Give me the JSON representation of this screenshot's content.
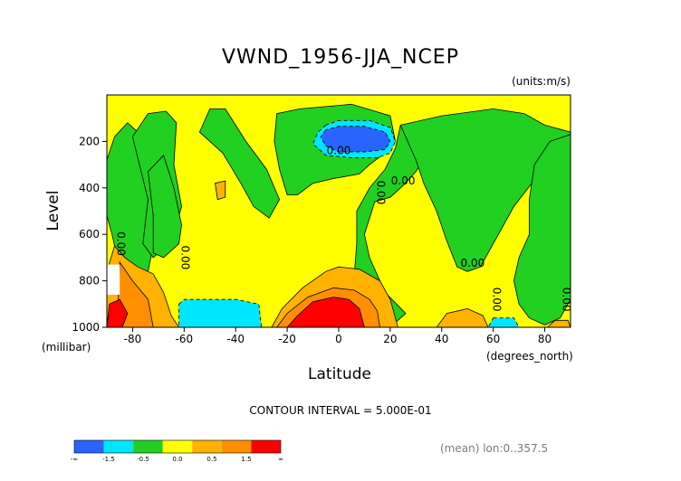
{
  "chart_data": {
    "type": "heatmap",
    "title": "VWND_1956-JJA_NCEP",
    "units_label": "(units:m/s)",
    "xlabel": "Latitude",
    "x_units_label": "(degrees_north)",
    "ylabel": "Level",
    "y_units_label": "(millibar)",
    "xlim": [
      -90,
      90
    ],
    "ylim": [
      1000,
      0
    ],
    "x_ticks": [
      -80,
      -60,
      -40,
      -20,
      0,
      20,
      40,
      60,
      80
    ],
    "y_ticks": [
      200,
      400,
      600,
      800,
      1000
    ],
    "contour_interval_text": "CONTOUR INTERVAL = 5.000E-01",
    "contour_labels": [
      {
        "text": "0.00",
        "lat": 0,
        "level": 255,
        "rotate": 0
      },
      {
        "text": "0.00",
        "lat": 25,
        "level": 385,
        "rotate": 0
      },
      {
        "text": "0.00",
        "lat": 15,
        "level": 420,
        "rotate": 90
      },
      {
        "text": "0.00",
        "lat": 52,
        "level": 740,
        "rotate": 0
      },
      {
        "text": "0.00",
        "lat": -61,
        "level": 700,
        "rotate": 90
      },
      {
        "text": "0.00",
        "lat": -86,
        "level": 640,
        "rotate": 90
      },
      {
        "text": "0.00",
        "lat": 60,
        "level": 880,
        "rotate": 90
      },
      {
        "text": "0.00",
        "lat": 87,
        "level": 880,
        "rotate": 90
      }
    ],
    "colorbar": {
      "labels": [
        "-∞",
        "-1.5",
        "-0.5",
        "0.0",
        "0.5",
        "1.5",
        "∞"
      ],
      "colors": [
        "#2a64ff",
        "#00e6ff",
        "#21d021",
        "#ffff00",
        "#ffb300",
        "#ff8f00",
        "#ff0000"
      ]
    },
    "fields": [
      {
        "level": "positive",
        "color": "#ffff00",
        "outline": [
          [
            -90,
            0
          ],
          [
            90,
            0
          ],
          [
            90,
            1000
          ],
          [
            -90,
            1000
          ]
        ]
      },
      {
        "level": "negative",
        "color": "#21d021",
        "outline": [
          [
            -90,
            280
          ],
          [
            -87,
            180
          ],
          [
            -82,
            120
          ],
          [
            -78,
            160
          ],
          [
            -76,
            330
          ],
          [
            -72,
            400
          ],
          [
            -72,
            650
          ],
          [
            -74,
            760
          ],
          [
            -80,
            780
          ],
          [
            -86,
            700
          ],
          [
            -88,
            600
          ],
          [
            -90,
            520
          ]
        ]
      },
      {
        "level": "negative",
        "color": "#21d021",
        "outline": [
          [
            -80,
            180
          ],
          [
            -74,
            80
          ],
          [
            -67,
            70
          ],
          [
            -63,
            120
          ],
          [
            -64,
            300
          ],
          [
            -61,
            480
          ],
          [
            -64,
            600
          ],
          [
            -68,
            660
          ],
          [
            -72,
            700
          ],
          [
            -76,
            640
          ],
          [
            -74,
            450
          ]
        ]
      },
      {
        "level": "negative",
        "color": "#21d021",
        "outline": [
          [
            -54,
            160
          ],
          [
            -50,
            60
          ],
          [
            -44,
            60
          ],
          [
            -36,
            200
          ],
          [
            -28,
            320
          ],
          [
            -23,
            450
          ],
          [
            -27,
            530
          ],
          [
            -33,
            480
          ],
          [
            -38,
            380
          ],
          [
            -45,
            250
          ]
        ]
      },
      {
        "level": "negative",
        "color": "#21d021",
        "outline": [
          [
            -24,
            80
          ],
          [
            -15,
            60
          ],
          [
            5,
            40
          ],
          [
            20,
            90
          ],
          [
            22,
            200
          ],
          [
            18,
            250
          ],
          [
            12,
            300
          ],
          [
            8,
            340
          ],
          [
            -2,
            360
          ],
          [
            -10,
            380
          ],
          [
            -16,
            430
          ],
          [
            -20,
            430
          ],
          [
            -23,
            320
          ],
          [
            -25,
            200
          ]
        ]
      },
      {
        "level": "negative",
        "color": "#21d021",
        "outline": [
          [
            24,
            130
          ],
          [
            30,
            120
          ],
          [
            35,
            150
          ],
          [
            36,
            220
          ],
          [
            30,
            330
          ],
          [
            25,
            390
          ],
          [
            20,
            440
          ],
          [
            14,
            460
          ],
          [
            10,
            600
          ],
          [
            12,
            700
          ],
          [
            18,
            850
          ],
          [
            26,
            940
          ],
          [
            20,
            1000
          ],
          [
            8,
            1000
          ],
          [
            10,
            900
          ],
          [
            6,
            780
          ],
          [
            7,
            640
          ],
          [
            7,
            500
          ],
          [
            12,
            400
          ],
          [
            18,
            320
          ],
          [
            22,
            230
          ]
        ]
      },
      {
        "level": "negative",
        "color": "#21d021",
        "outline": [
          [
            24,
            130
          ],
          [
            40,
            90
          ],
          [
            60,
            60
          ],
          [
            72,
            80
          ],
          [
            80,
            130
          ],
          [
            90,
            160
          ],
          [
            90,
            360
          ],
          [
            82,
            350
          ],
          [
            75,
            380
          ],
          [
            68,
            480
          ],
          [
            62,
            600
          ],
          [
            55,
            740
          ],
          [
            50,
            760
          ],
          [
            46,
            740
          ],
          [
            42,
            630
          ],
          [
            38,
            500
          ],
          [
            33,
            380
          ],
          [
            30,
            280
          ]
        ]
      },
      {
        "level": "negative",
        "color": "#21d021",
        "outline": [
          [
            76,
            300
          ],
          [
            82,
            200
          ],
          [
            90,
            170
          ],
          [
            90,
            880
          ],
          [
            86,
            960
          ],
          [
            80,
            990
          ],
          [
            74,
            960
          ],
          [
            70,
            900
          ],
          [
            68,
            800
          ],
          [
            70,
            700
          ],
          [
            74,
            600
          ],
          [
            74,
            450
          ]
        ]
      },
      {
        "level": "negative",
        "color": "#21d021",
        "outline": [
          [
            -74,
            330
          ],
          [
            -68,
            260
          ],
          [
            -64,
            400
          ],
          [
            -61,
            560
          ],
          [
            -62,
            640
          ],
          [
            -68,
            700
          ],
          [
            -72,
            680
          ],
          [
            -72,
            520
          ]
        ]
      },
      {
        "level": "negative",
        "color": "#00e6ff",
        "outline": [
          [
            -5,
            130
          ],
          [
            -8,
            160
          ],
          [
            -10,
            210
          ],
          [
            -5,
            260
          ],
          [
            5,
            270
          ],
          [
            15,
            270
          ],
          [
            20,
            250
          ],
          [
            22,
            200
          ],
          [
            20,
            140
          ],
          [
            12,
            110
          ],
          [
            0,
            110
          ]
        ]
      },
      {
        "level": "negative",
        "color": "#2a64ff",
        "outline": [
          [
            -5,
            150
          ],
          [
            -7,
            180
          ],
          [
            -5,
            220
          ],
          [
            0,
            245
          ],
          [
            10,
            245
          ],
          [
            18,
            235
          ],
          [
            20,
            200
          ],
          [
            18,
            160
          ],
          [
            10,
            135
          ],
          [
            0,
            135
          ]
        ]
      },
      {
        "level": "negative",
        "color": "#00e6ff",
        "outline": [
          [
            -62,
            900
          ],
          [
            -60,
            880
          ],
          [
            -40,
            880
          ],
          [
            -31,
            900
          ],
          [
            -30,
            1000
          ],
          [
            -62,
            1000
          ]
        ]
      },
      {
        "level": "negative",
        "color": "#00e6ff",
        "outline": [
          [
            60,
            960
          ],
          [
            68,
            960
          ],
          [
            70,
            1000
          ],
          [
            58,
            1000
          ]
        ]
      },
      {
        "level": "positive",
        "color": "#ffb300",
        "outline": [
          [
            -87,
            650
          ],
          [
            -83,
            700
          ],
          [
            -78,
            740
          ],
          [
            -72,
            770
          ],
          [
            -68,
            850
          ],
          [
            -65,
            950
          ],
          [
            -62,
            1000
          ],
          [
            -90,
            1000
          ],
          [
            -90,
            760
          ]
        ]
      },
      {
        "level": "positive",
        "color": "#ff8f00",
        "outline": [
          [
            -85,
            720
          ],
          [
            -80,
            800
          ],
          [
            -74,
            880
          ],
          [
            -72,
            1000
          ],
          [
            -86,
            1000
          ]
        ]
      },
      {
        "level": "positive",
        "color": "#ff0000",
        "outline": [
          [
            -89,
            900
          ],
          [
            -85,
            880
          ],
          [
            -82,
            940
          ],
          [
            -84,
            1000
          ],
          [
            -90,
            1000
          ]
        ]
      },
      {
        "level": "positive",
        "color": "#ffb300",
        "outline": [
          [
            -26,
            1000
          ],
          [
            -22,
            920
          ],
          [
            -14,
            830
          ],
          [
            -5,
            760
          ],
          [
            0,
            740
          ],
          [
            8,
            750
          ],
          [
            16,
            800
          ],
          [
            20,
            880
          ],
          [
            22,
            960
          ],
          [
            23,
            1000
          ]
        ]
      },
      {
        "level": "positive",
        "color": "#ff8f00",
        "outline": [
          [
            -24,
            1000
          ],
          [
            -20,
            940
          ],
          [
            -12,
            870
          ],
          [
            -2,
            830
          ],
          [
            6,
            840
          ],
          [
            12,
            880
          ],
          [
            15,
            930
          ],
          [
            16,
            1000
          ]
        ]
      },
      {
        "level": "positive",
        "color": "#ff0000",
        "outline": [
          [
            -20,
            1000
          ],
          [
            -16,
            950
          ],
          [
            -10,
            890
          ],
          [
            -2,
            870
          ],
          [
            4,
            880
          ],
          [
            8,
            920
          ],
          [
            10,
            1000
          ]
        ]
      },
      {
        "level": "positive",
        "color": "#ffb300",
        "outline": [
          [
            38,
            1000
          ],
          [
            42,
            940
          ],
          [
            50,
            920
          ],
          [
            56,
            950
          ],
          [
            58,
            1000
          ]
        ]
      },
      {
        "level": "positive",
        "color": "#ffb300",
        "outline": [
          [
            -48,
            380
          ],
          [
            -44,
            370
          ],
          [
            -44,
            440
          ],
          [
            -47,
            450
          ]
        ]
      },
      {
        "level": "positive",
        "color": "#ffb300",
        "outline": [
          [
            81,
            1000
          ],
          [
            84,
            970
          ],
          [
            89,
            970
          ],
          [
            90,
            1000
          ]
        ]
      }
    ],
    "missing_region": [
      [
        -90,
        730
      ],
      [
        -85,
        730
      ],
      [
        -85,
        860
      ],
      [
        -90,
        860
      ]
    ]
  },
  "footer": {
    "mean_text": "(mean) lon:0..357.5"
  }
}
